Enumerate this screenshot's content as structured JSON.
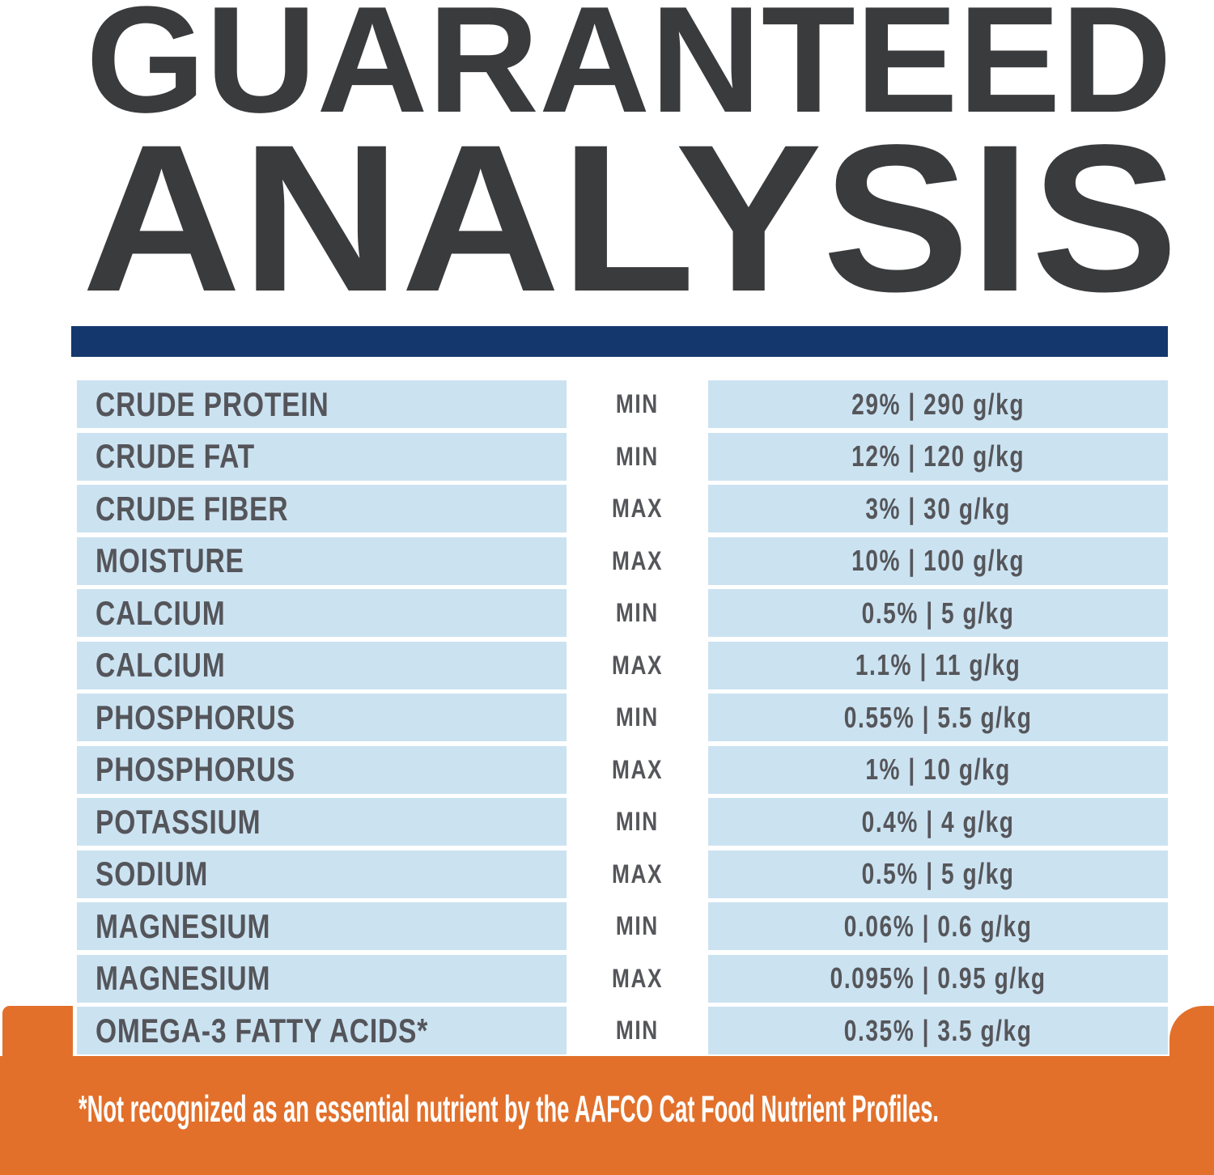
{
  "title": {
    "line1": "GUARANTEED",
    "line2": "ANALYSIS"
  },
  "colors": {
    "navy_bar": "#14386E",
    "row_blue": "#CBE2F1",
    "orange": "#E2702B",
    "title_gray": "#3A3B3D",
    "text_gray": "#55565A"
  },
  "table": {
    "rows": [
      {
        "label": "CRUDE PROTEIN",
        "qualifier": "MIN",
        "value": "29% | 290 g/kg"
      },
      {
        "label": "CRUDE FAT",
        "qualifier": "MIN",
        "value": "12% | 120 g/kg"
      },
      {
        "label": "CRUDE FIBER",
        "qualifier": "MAX",
        "value": "3% | 30 g/kg"
      },
      {
        "label": "MOISTURE",
        "qualifier": "MAX",
        "value": "10% | 100 g/kg"
      },
      {
        "label": "CALCIUM",
        "qualifier": "MIN",
        "value": "0.5% | 5 g/kg"
      },
      {
        "label": "CALCIUM",
        "qualifier": "MAX",
        "value": "1.1% | 11 g/kg"
      },
      {
        "label": "PHOSPHORUS",
        "qualifier": "MIN",
        "value": "0.55% | 5.5 g/kg"
      },
      {
        "label": "PHOSPHORUS",
        "qualifier": "MAX",
        "value": "1% | 10 g/kg"
      },
      {
        "label": "POTASSIUM",
        "qualifier": "MIN",
        "value": "0.4% | 4 g/kg"
      },
      {
        "label": "SODIUM",
        "qualifier": "MAX",
        "value": "0.5% | 5 g/kg"
      },
      {
        "label": "MAGNESIUM",
        "qualifier": "MIN",
        "value": "0.06% | 0.6 g/kg"
      },
      {
        "label": "MAGNESIUM",
        "qualifier": "MAX",
        "value": "0.095% | 0.95 g/kg"
      },
      {
        "label": "OMEGA-3 FATTY ACIDS*",
        "qualifier": "MIN",
        "value": "0.35% | 3.5 g/kg"
      }
    ]
  },
  "footnote": {
    "text": "*Not recognized as an essential nutrient by the AAFCO Cat Food Nutrient Profiles."
  }
}
